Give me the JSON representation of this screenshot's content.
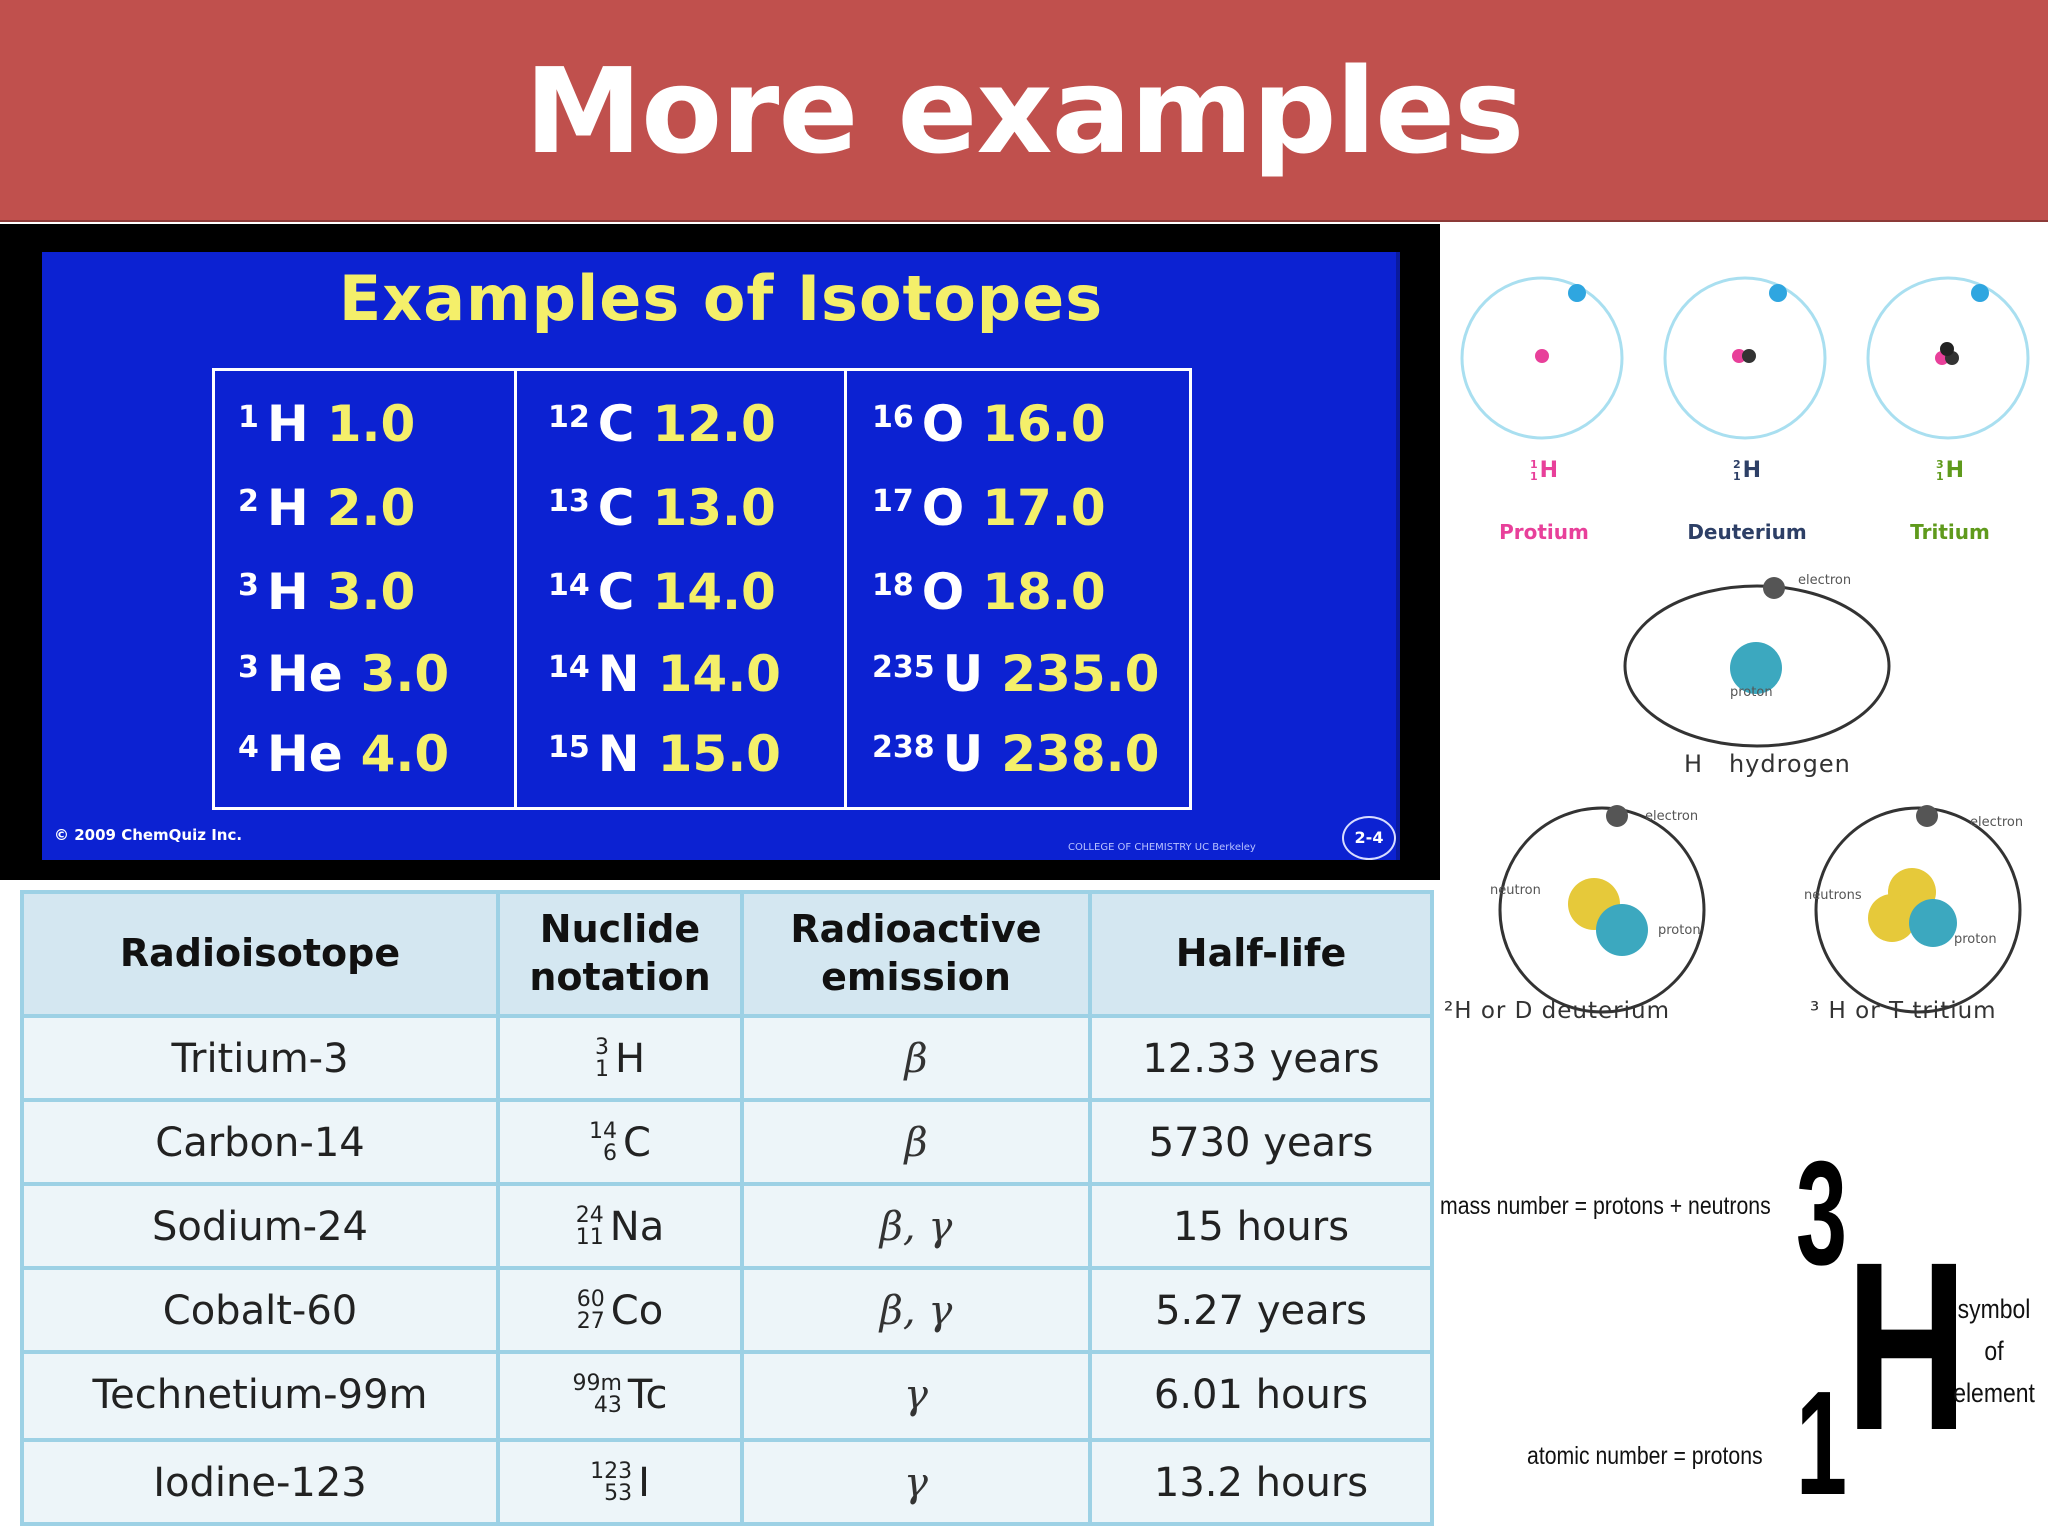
{
  "title": "More examples",
  "isotope_slide": {
    "title": "Examples of Isotopes",
    "columns": [
      [
        {
          "mass": "1",
          "symbol": "H",
          "value": "1.0"
        },
        {
          "mass": "2",
          "symbol": "H",
          "value": "2.0"
        },
        {
          "mass": "3",
          "symbol": "H",
          "value": "3.0"
        },
        {
          "mass": "3",
          "symbol": "He",
          "value": "3.0"
        },
        {
          "mass": "4",
          "symbol": "He",
          "value": "4.0"
        }
      ],
      [
        {
          "mass": "12",
          "symbol": "C",
          "value": "12.0"
        },
        {
          "mass": "13",
          "symbol": "C",
          "value": "13.0"
        },
        {
          "mass": "14",
          "symbol": "C",
          "value": "14.0"
        },
        {
          "mass": "14",
          "symbol": "N",
          "value": "14.0"
        },
        {
          "mass": "15",
          "symbol": "N",
          "value": "15.0"
        }
      ],
      [
        {
          "mass": "16",
          "symbol": "O",
          "value": "16.0"
        },
        {
          "mass": "17",
          "symbol": "O",
          "value": "17.0"
        },
        {
          "mass": "18",
          "symbol": "O",
          "value": "18.0"
        },
        {
          "mass": "235",
          "symbol": "U",
          "value": "235.0"
        },
        {
          "mass": "238",
          "symbol": "U",
          "value": "238.0"
        }
      ]
    ],
    "copyright": "© 2009 ChemQuiz Inc.",
    "college": "COLLEGE OF CHEMISTRY UC Berkeley",
    "page_number": "2-4"
  },
  "radio_table": {
    "headers": [
      "Radioisotope",
      "Nuclide notation",
      "Radioactive emission",
      "Half-life"
    ],
    "rows": [
      {
        "name": "Tritium-3",
        "mass": "3",
        "atomic": "1",
        "symbol": "H",
        "emission": "β",
        "half_life": "12.33 years"
      },
      {
        "name": "Carbon-14",
        "mass": "14",
        "atomic": "6",
        "symbol": "C",
        "emission": "β",
        "half_life": "5730 years"
      },
      {
        "name": "Sodium-24",
        "mass": "24",
        "atomic": "11",
        "symbol": "Na",
        "emission": "β, γ",
        "half_life": "15 hours"
      },
      {
        "name": "Cobalt-60",
        "mass": "60",
        "atomic": "27",
        "symbol": "Co",
        "emission": "β, γ",
        "half_life": "5.27 years"
      },
      {
        "name": "Technetium-99m",
        "mass": "99m",
        "atomic": "43",
        "symbol": "Tc",
        "emission": "γ",
        "half_life": "6.01 hours"
      },
      {
        "name": "Iodine-123",
        "mass": "123",
        "atomic": "53",
        "symbol": "I",
        "emission": "γ",
        "half_life": "13.2 hours"
      }
    ]
  },
  "hydrogen_isotopes_top": [
    {
      "label": "Protium",
      "notation_mass": "1",
      "notation_atomic": "1",
      "symbol": "H",
      "color": "#e8409a"
    },
    {
      "label": "Deuterium",
      "notation_mass": "2",
      "notation_atomic": "1",
      "symbol": "H",
      "color": "#2d3f66"
    },
    {
      "label": "Tritium",
      "notation_mass": "3",
      "notation_atomic": "1",
      "symbol": "H",
      "color": "#5f9a1c"
    }
  ],
  "atom_diagrams": {
    "hydrogen": {
      "electron": "electron",
      "proton": "proton",
      "caption_symbol": "H",
      "caption_name": "hydrogen"
    },
    "deuterium": {
      "electron": "electron",
      "neutron": "neutron",
      "proton": "proton",
      "caption": "²H  or D deuterium"
    },
    "tritium": {
      "electron": "electron",
      "neutrons": "neutrons",
      "proton": "proton",
      "caption": "³ H or T  tritium"
    }
  },
  "notation_diagram": {
    "mass_label": "mass number = protons + neutrons",
    "atomic_label": "atomic number = protons",
    "mass_number": "3",
    "atomic_number": "1",
    "symbol": "H",
    "symbol_label_lines": [
      "symbol",
      "of",
      "element"
    ]
  }
}
